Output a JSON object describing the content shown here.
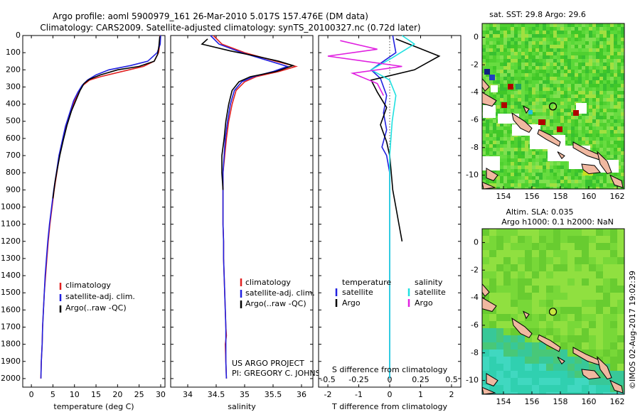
{
  "title_line1": "Argo profile: aoml 5900979_161 26-Mar-2010 5.017S 157.476E (DM data)",
  "title_line2": "Climatology: CARS2009. Satellite-adjusted climatology: synTS_20100327.nc (0.72d later)",
  "colors": {
    "climatology": "#e02020",
    "satellite": "#2020e0",
    "argo": "#000000",
    "sat_salinity": "#20e0e0",
    "argo_salinity": "#e020e0"
  },
  "chart_data": [
    {
      "type": "line",
      "xlabel": "temperature (deg C)",
      "ylabel": "",
      "xlim": [
        -2,
        31
      ],
      "ylim": [
        2050,
        0
      ],
      "xticks": [
        0,
        5,
        10,
        15,
        20,
        25,
        30
      ],
      "yticks": [
        0,
        100,
        200,
        300,
        400,
        500,
        600,
        700,
        800,
        900,
        1000,
        1100,
        1200,
        1300,
        1400,
        1500,
        1600,
        1700,
        1800,
        1900,
        2000
      ],
      "legend": [
        "climatology",
        "satellite-adj. clim.",
        "Argo(..raw -QC)"
      ],
      "legend_position": "lower-right",
      "series": [
        {
          "name": "climatology",
          "color": "#e02020",
          "points": [
            [
              29.9,
              0
            ],
            [
              29.8,
              50
            ],
            [
              29.5,
              100
            ],
            [
              28.5,
              150
            ],
            [
              26,
              180
            ],
            [
              21,
              210
            ],
            [
              16,
              240
            ],
            [
              13.5,
              260
            ],
            [
              12,
              290
            ],
            [
              11,
              330
            ],
            [
              10,
              380
            ],
            [
              9,
              450
            ],
            [
              8,
              530
            ],
            [
              7.2,
              620
            ],
            [
              6.5,
              700
            ],
            [
              5.9,
              800
            ],
            [
              5.3,
              900
            ],
            [
              4.8,
              1000
            ],
            [
              4.3,
              1100
            ],
            [
              3.9,
              1200
            ],
            [
              3.6,
              1300
            ],
            [
              3.3,
              1400
            ],
            [
              3.0,
              1500
            ],
            [
              2.8,
              1600
            ],
            [
              2.6,
              1700
            ],
            [
              2.5,
              1800
            ],
            [
              2.3,
              1900
            ],
            [
              2.2,
              2000
            ]
          ]
        },
        {
          "name": "satellite-adj. clim.",
          "color": "#2020e0",
          "points": [
            [
              30.0,
              0
            ],
            [
              29.9,
              50
            ],
            [
              29.2,
              100
            ],
            [
              27,
              150
            ],
            [
              23,
              175
            ],
            [
              18,
              200
            ],
            [
              15,
              230
            ],
            [
              13,
              260
            ],
            [
              11.8,
              290
            ],
            [
              10.8,
              330
            ],
            [
              9.8,
              380
            ],
            [
              8.9,
              450
            ],
            [
              7.9,
              530
            ],
            [
              7.1,
              620
            ],
            [
              6.4,
              700
            ],
            [
              5.8,
              800
            ],
            [
              5.2,
              900
            ],
            [
              4.7,
              1000
            ],
            [
              4.2,
              1100
            ],
            [
              3.8,
              1200
            ],
            [
              3.5,
              1300
            ],
            [
              3.2,
              1400
            ],
            [
              3.0,
              1500
            ],
            [
              2.8,
              1600
            ],
            [
              2.6,
              1700
            ],
            [
              2.5,
              1800
            ],
            [
              2.3,
              1900
            ],
            [
              2.2,
              2000
            ]
          ]
        },
        {
          "name": "Argo(..raw -QC)",
          "color": "#000000",
          "points": [
            [
              29.8,
              5
            ],
            [
              29.6,
              60
            ],
            [
              29.3,
              110
            ],
            [
              28.5,
              150
            ],
            [
              25,
              180
            ],
            [
              20,
              200
            ],
            [
              16,
              230
            ],
            [
              13.5,
              255
            ],
            [
              12.2,
              280
            ],
            [
              11.3,
              320
            ],
            [
              10.3,
              380
            ],
            [
              9.3,
              440
            ],
            [
              8.3,
              520
            ],
            [
              7.4,
              610
            ],
            [
              6.6,
              700
            ],
            [
              6.0,
              780
            ],
            [
              5.5,
              850
            ],
            [
              5.0,
              950
            ]
          ]
        }
      ]
    },
    {
      "type": "line",
      "xlabel": "salinity",
      "xlim": [
        33.7,
        36.2
      ],
      "ylim": [
        2050,
        0
      ],
      "xticks": [
        34,
        34.5,
        35,
        35.5,
        36
      ],
      "xtick_labels": [
        "34",
        "34.5",
        "35",
        "35.5",
        "36"
      ],
      "legend": [
        "climatology",
        "satellite-adj. clim.",
        "Argo(..raw -QC)"
      ],
      "legend_position": "lower-right",
      "series": [
        {
          "name": "climatology",
          "color": "#e02020",
          "points": [
            [
              34.45,
              0
            ],
            [
              34.6,
              50
            ],
            [
              35.0,
              100
            ],
            [
              35.55,
              150
            ],
            [
              35.9,
              180
            ],
            [
              35.6,
              210
            ],
            [
              35.2,
              240
            ],
            [
              35.0,
              270
            ],
            [
              34.85,
              320
            ],
            [
              34.78,
              400
            ],
            [
              34.72,
              500
            ],
            [
              34.68,
              600
            ],
            [
              34.65,
              700
            ],
            [
              34.62,
              800
            ],
            [
              34.62,
              900
            ],
            [
              34.62,
              1000
            ],
            [
              34.62,
              1100
            ],
            [
              34.63,
              1200
            ],
            [
              34.63,
              1300
            ],
            [
              34.64,
              1400
            ],
            [
              34.65,
              1500
            ],
            [
              34.66,
              1600
            ],
            [
              34.67,
              1700
            ],
            [
              34.68,
              1750
            ],
            [
              34.66,
              1800
            ],
            [
              34.67,
              1900
            ],
            [
              34.68,
              2000
            ]
          ]
        },
        {
          "name": "satellite-adj. clim.",
          "color": "#2020e0",
          "points": [
            [
              34.4,
              0
            ],
            [
              34.55,
              50
            ],
            [
              34.95,
              100
            ],
            [
              35.45,
              150
            ],
            [
              35.75,
              180
            ],
            [
              35.5,
              210
            ],
            [
              35.15,
              240
            ],
            [
              34.95,
              270
            ],
            [
              34.82,
              320
            ],
            [
              34.75,
              400
            ],
            [
              34.7,
              500
            ],
            [
              34.66,
              600
            ],
            [
              34.64,
              700
            ],
            [
              34.62,
              800
            ],
            [
              34.62,
              900
            ],
            [
              34.62,
              1000
            ],
            [
              34.62,
              1100
            ],
            [
              34.63,
              1200
            ],
            [
              34.63,
              1300
            ],
            [
              34.64,
              1400
            ],
            [
              34.65,
              1500
            ],
            [
              34.66,
              1600
            ],
            [
              34.67,
              1700
            ],
            [
              34.67,
              1800
            ],
            [
              34.67,
              1900
            ],
            [
              34.68,
              2000
            ]
          ]
        },
        {
          "name": "Argo(..raw -QC)",
          "color": "#000000",
          "points": [
            [
              34.35,
              20
            ],
            [
              34.25,
              50
            ],
            [
              34.75,
              90
            ],
            [
              35.2,
              120
            ],
            [
              35.6,
              150
            ],
            [
              35.85,
              175
            ],
            [
              35.55,
              210
            ],
            [
              35.1,
              240
            ],
            [
              34.9,
              270
            ],
            [
              34.78,
              320
            ],
            [
              34.72,
              400
            ],
            [
              34.67,
              500
            ],
            [
              34.64,
              600
            ],
            [
              34.6,
              700
            ],
            [
              34.6,
              800
            ],
            [
              34.62,
              900
            ]
          ]
        }
      ]
    },
    {
      "type": "line",
      "xlabel": "T difference from climatology",
      "xlabel2": "S difference from climatology",
      "xlim": [
        -2.3,
        2.3
      ],
      "ylim": [
        2050,
        0
      ],
      "xticks": [
        -2,
        -1,
        0,
        1,
        2
      ],
      "xticks2": [
        -0.5,
        -0.25,
        0,
        0.25,
        0.5
      ],
      "xtick2_labels": [
        "-0.5",
        "-0.25",
        "0",
        "0.25",
        "0.5"
      ],
      "legend_temperature_title": "temperature",
      "legend_salinity_title": "salinity",
      "legend_temperature": [
        "satellite",
        "Argo"
      ],
      "legend_salinity": [
        "satellite",
        "Argo"
      ],
      "series": [
        {
          "name": "temperature satellite",
          "color": "#2020e0",
          "points": [
            [
              0.1,
              0
            ],
            [
              0.2,
              100
            ],
            [
              -0.2,
              150
            ],
            [
              -0.6,
              200
            ],
            [
              -0.3,
              250
            ],
            [
              -0.1,
              350
            ],
            [
              -0.2,
              450
            ],
            [
              -0.1,
              550
            ],
            [
              -0.25,
              650
            ],
            [
              -0.1,
              700
            ],
            [
              0,
              800
            ],
            [
              0,
              900
            ],
            [
              0,
              1000
            ],
            [
              0,
              1200
            ],
            [
              0,
              1400
            ],
            [
              0,
              1600
            ],
            [
              0,
              1800
            ],
            [
              0,
              2000
            ]
          ]
        },
        {
          "name": "temperature Argo",
          "color": "#000000",
          "points": [
            [
              0.2,
              20
            ],
            [
              1.6,
              120
            ],
            [
              0.8,
              200
            ],
            [
              -0.6,
              260
            ],
            [
              -0.4,
              330
            ],
            [
              -0.1,
              420
            ],
            [
              -0.3,
              520
            ],
            [
              -0.1,
              620
            ],
            [
              0,
              700
            ],
            [
              0.05,
              800
            ],
            [
              0.1,
              900
            ],
            [
              0.2,
              1000
            ],
            [
              0.3,
              1100
            ],
            [
              0.4,
              1200
            ]
          ]
        },
        {
          "name": "salinity satellite",
          "color": "#20e0e0",
          "points": [
            [
              0.1,
              0
            ],
            [
              0.2,
              50
            ],
            [
              0.02,
              130
            ],
            [
              -0.15,
              200
            ],
            [
              0,
              260
            ],
            [
              0.05,
              350
            ],
            [
              0.02,
              500
            ],
            [
              0,
              700
            ],
            [
              0,
              900
            ],
            [
              0,
              1200
            ],
            [
              0,
              1500
            ],
            [
              0,
              1800
            ],
            [
              0,
              2000
            ]
          ]
        },
        {
          "name": "salinity Argo",
          "color": "#e020e0",
          "points": [
            [
              -0.4,
              30
            ],
            [
              -0.1,
              80
            ],
            [
              -0.5,
              120
            ],
            [
              0.1,
              180
            ],
            [
              -0.3,
              220
            ],
            [
              -0.1,
              280
            ],
            [
              -0.05,
              350
            ]
          ]
        }
      ]
    },
    {
      "type": "heatmap",
      "title": "sat. SST: 29.8 Argo: 29.6",
      "xlim": [
        152.5,
        162.5
      ],
      "ylim": [
        -11,
        1
      ],
      "xticks": [
        154,
        156,
        158,
        160,
        162
      ],
      "yticks": [
        0,
        -2,
        -4,
        -6,
        -8,
        -10
      ],
      "marker": {
        "lon": 157.476,
        "lat": -5.017
      }
    },
    {
      "type": "heatmap",
      "title": "Altim. SLA: 0.035",
      "subtitle": "Argo h1000: 0.1 h2000: NaN",
      "xlim": [
        152.5,
        162.5
      ],
      "ylim": [
        -11,
        1
      ],
      "xticks": [
        154,
        156,
        158,
        160,
        162
      ],
      "yticks": [
        0,
        -2,
        -4,
        -6,
        -8,
        -10
      ],
      "marker": {
        "lon": 157.476,
        "lat": -5.017
      }
    }
  ],
  "credit_line1": "US ARGO PROJECT",
  "credit_line2": "PI: GREGORY C. JOHNSON",
  "imos_stamp": "©IMOS 02-Aug-2017 19:02:39"
}
